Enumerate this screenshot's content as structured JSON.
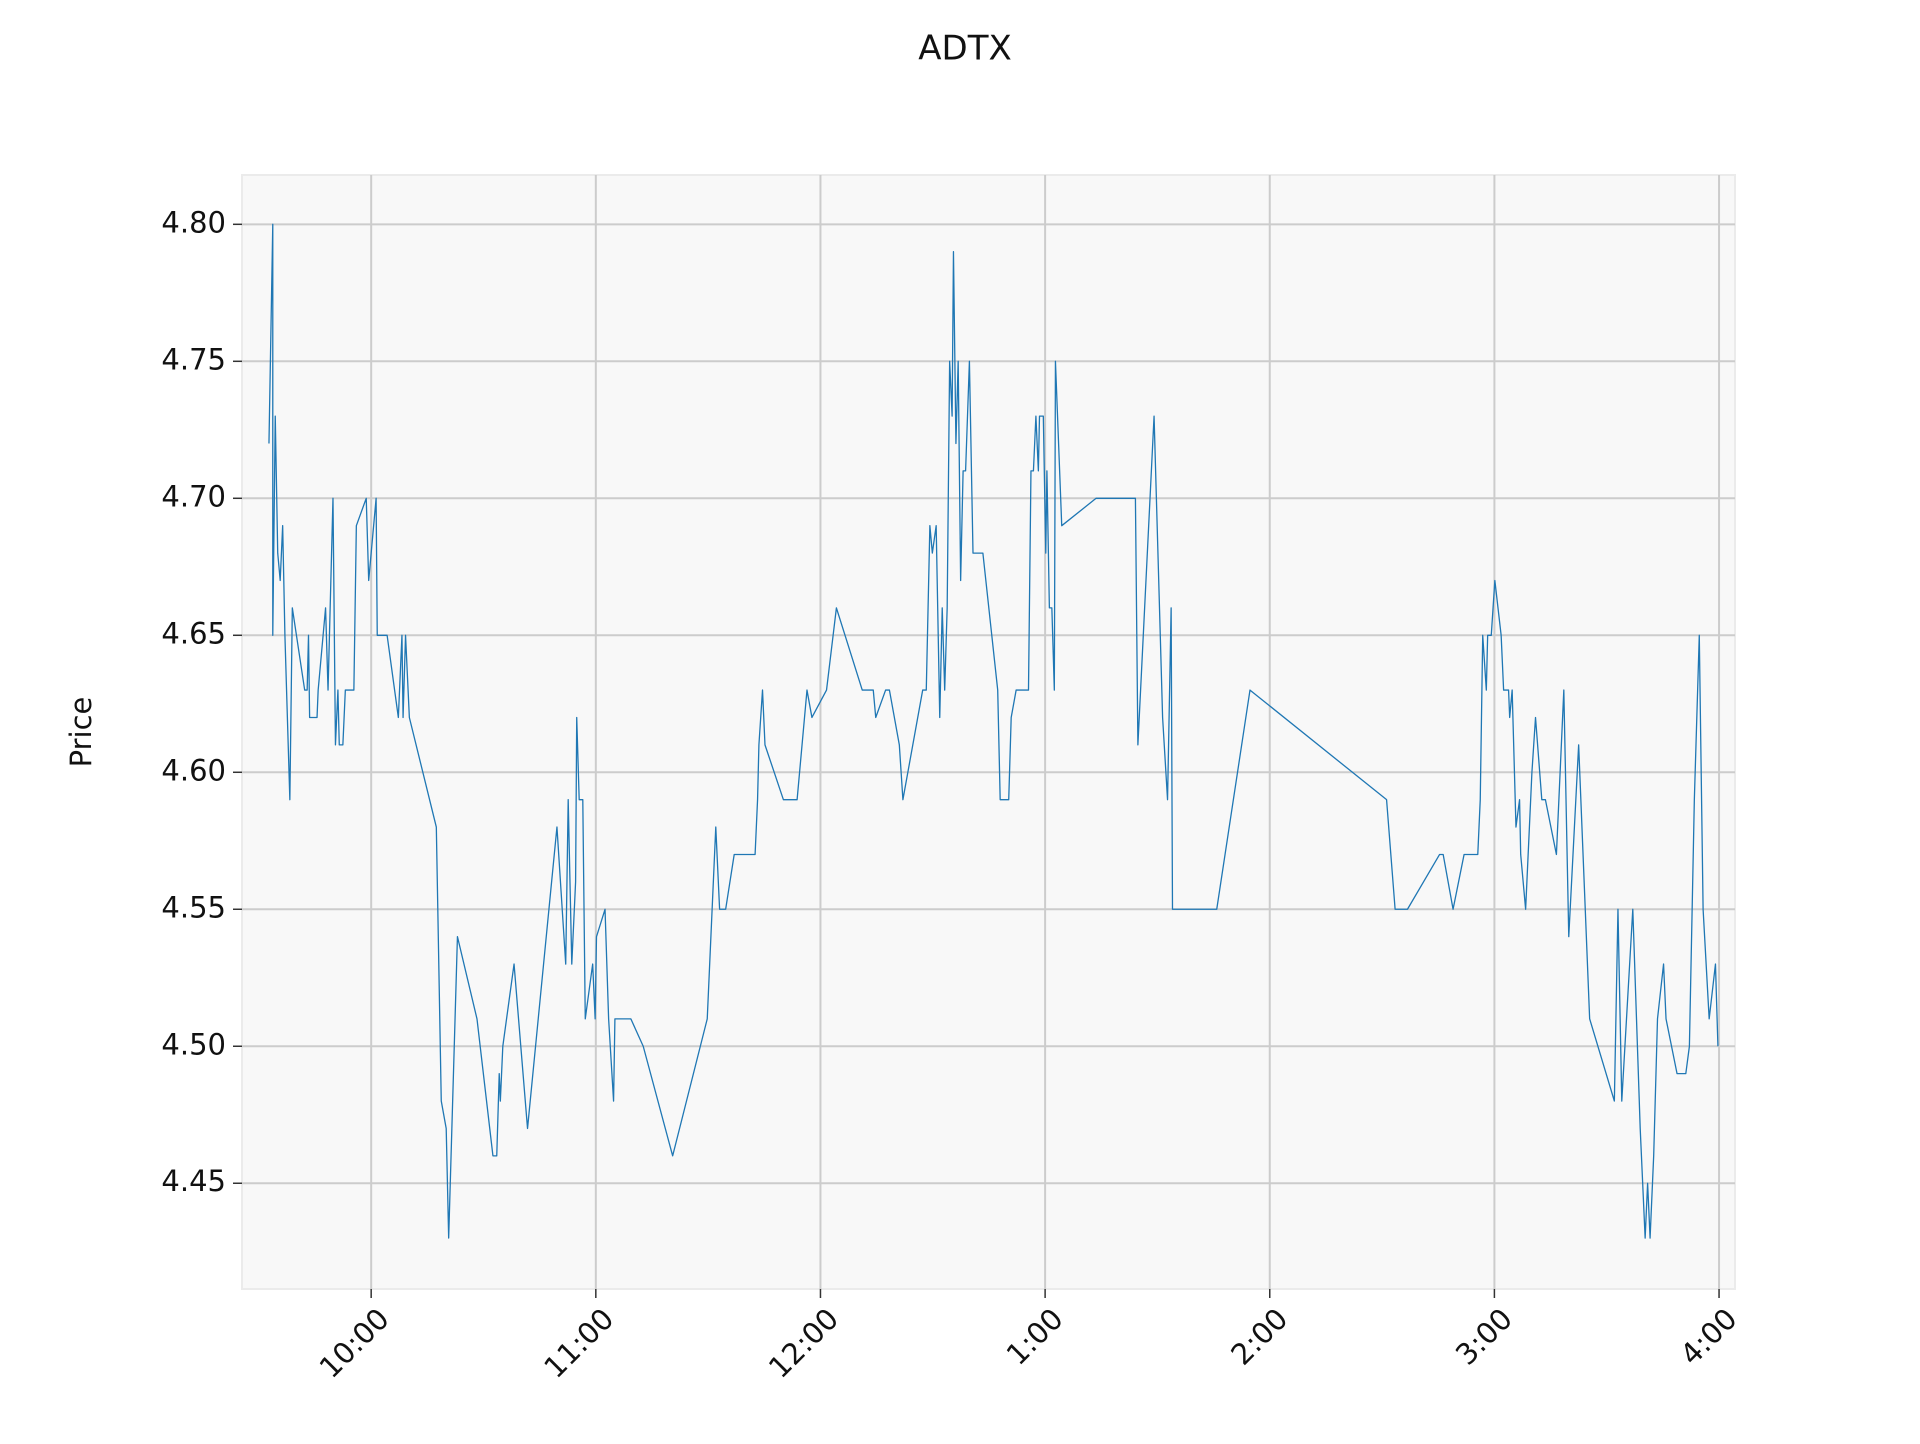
{
  "chart_data": {
    "type": "line",
    "title": "ADTX",
    "y_label": "Price",
    "color": "#1f77b4",
    "grid": true,
    "xlim": [
      9.425,
      16.071
    ],
    "ylim": [
      4.4114,
      4.818
    ],
    "xticks": [
      {
        "value": 10,
        "label": "10:00"
      },
      {
        "value": 11,
        "label": "11:00"
      },
      {
        "value": 12,
        "label": "12:00"
      },
      {
        "value": 13,
        "label": "1:00"
      },
      {
        "value": 14,
        "label": "2:00"
      },
      {
        "value": 15,
        "label": "3:00"
      },
      {
        "value": 16,
        "label": "4:00"
      }
    ],
    "yticks": [
      4.45,
      {
        "value": 4.5,
        "label": "4.50"
      },
      4.55,
      {
        "value": 4.6,
        "label": "4.60"
      },
      4.65,
      {
        "value": 4.7,
        "label": "4.70"
      },
      4.75,
      {
        "value": 4.8,
        "label": "4.80"
      }
    ],
    "x": [
      9.545,
      9.562,
      9.562,
      9.573,
      9.584,
      9.595,
      9.606,
      9.616,
      9.638,
      9.649,
      9.704,
      9.715,
      9.721,
      9.726,
      9.759,
      9.764,
      9.797,
      9.808,
      9.83,
      9.841,
      9.852,
      9.858,
      9.874,
      9.885,
      9.923,
      9.934,
      9.978,
      9.989,
      10.022,
      10.027,
      10.071,
      10.121,
      10.137,
      10.142,
      10.153,
      10.17,
      10.29,
      10.312,
      10.334,
      10.345,
      10.384,
      10.471,
      10.542,
      10.559,
      10.57,
      10.575,
      10.586,
      10.636,
      10.696,
      10.827,
      10.866,
      10.877,
      10.893,
      10.91,
      10.915,
      10.926,
      10.942,
      10.953,
      10.986,
      10.997,
      11.003,
      11.041,
      11.057,
      11.079,
      11.085,
      11.156,
      11.211,
      11.342,
      11.496,
      11.534,
      11.551,
      11.578,
      11.616,
      11.709,
      11.72,
      11.726,
      11.742,
      11.753,
      11.835,
      11.896,
      11.94,
      11.962,
      12.027,
      12.071,
      12.186,
      12.235,
      12.246,
      12.29,
      12.307,
      12.351,
      12.367,
      12.455,
      12.471,
      12.487,
      12.498,
      12.515,
      12.531,
      12.542,
      12.553,
      12.564,
      12.575,
      12.586,
      12.592,
      12.603,
      12.613,
      12.624,
      12.635,
      12.646,
      12.663,
      12.679,
      12.723,
      12.789,
      12.8,
      12.838,
      12.849,
      12.871,
      12.926,
      12.937,
      12.948,
      12.959,
      12.97,
      12.975,
      12.992,
      13.003,
      13.008,
      13.019,
      13.03,
      13.041,
      13.046,
      13.074,
      13.227,
      13.402,
      13.413,
      13.485,
      13.523,
      13.545,
      13.561,
      13.567,
      13.764,
      13.912,
      14.52,
      14.558,
      14.613,
      14.756,
      14.772,
      14.816,
      14.865,
      14.926,
      14.937,
      14.948,
      14.964,
      14.97,
      14.986,
      15.002,
      15.03,
      15.041,
      15.063,
      15.068,
      15.079,
      15.096,
      15.112,
      15.117,
      15.139,
      15.167,
      15.183,
      15.211,
      15.227,
      15.276,
      15.309,
      15.331,
      15.375,
      15.424,
      15.534,
      15.55,
      15.567,
      15.616,
      15.649,
      15.671,
      15.682,
      15.693,
      15.709,
      15.726,
      15.753,
      15.764,
      15.813,
      15.852,
      15.868,
      15.89,
      15.912,
      15.929,
      15.956,
      15.984,
      15.995
    ],
    "values": [
      4.72,
      4.8,
      4.65,
      4.73,
      4.68,
      4.67,
      4.69,
      4.65,
      4.59,
      4.66,
      4.63,
      4.63,
      4.65,
      4.62,
      4.62,
      4.63,
      4.66,
      4.63,
      4.7,
      4.61,
      4.63,
      4.61,
      4.61,
      4.63,
      4.63,
      4.69,
      4.7,
      4.67,
      4.7,
      4.65,
      4.65,
      4.62,
      4.65,
      4.62,
      4.65,
      4.62,
      4.58,
      4.48,
      4.47,
      4.43,
      4.54,
      4.51,
      4.46,
      4.46,
      4.49,
      4.48,
      4.5,
      4.53,
      4.47,
      4.58,
      4.53,
      4.59,
      4.53,
      4.56,
      4.62,
      4.59,
      4.59,
      4.51,
      4.53,
      4.51,
      4.54,
      4.55,
      4.51,
      4.48,
      4.51,
      4.51,
      4.5,
      4.46,
      4.51,
      4.58,
      4.55,
      4.55,
      4.57,
      4.57,
      4.59,
      4.61,
      4.63,
      4.61,
      4.59,
      4.59,
      4.63,
      4.62,
      4.63,
      4.66,
      4.63,
      4.63,
      4.62,
      4.63,
      4.63,
      4.61,
      4.59,
      4.63,
      4.63,
      4.69,
      4.68,
      4.69,
      4.62,
      4.66,
      4.63,
      4.66,
      4.75,
      4.73,
      4.79,
      4.72,
      4.75,
      4.67,
      4.71,
      4.71,
      4.75,
      4.68,
      4.68,
      4.63,
      4.59,
      4.59,
      4.62,
      4.63,
      4.63,
      4.71,
      4.71,
      4.73,
      4.71,
      4.73,
      4.73,
      4.68,
      4.71,
      4.66,
      4.66,
      4.63,
      4.75,
      4.69,
      4.7,
      4.7,
      4.61,
      4.73,
      4.62,
      4.59,
      4.66,
      4.55,
      4.55,
      4.63,
      4.59,
      4.55,
      4.55,
      4.57,
      4.57,
      4.55,
      4.57,
      4.57,
      4.59,
      4.65,
      4.63,
      4.65,
      4.65,
      4.67,
      4.65,
      4.63,
      4.63,
      4.62,
      4.63,
      4.58,
      4.59,
      4.57,
      4.55,
      4.6,
      4.62,
      4.59,
      4.59,
      4.57,
      4.63,
      4.54,
      4.61,
      4.51,
      4.48,
      4.55,
      4.48,
      4.55,
      4.47,
      4.43,
      4.45,
      4.43,
      4.46,
      4.51,
      4.53,
      4.51,
      4.49,
      4.49,
      4.5,
      4.59,
      4.65,
      4.55,
      4.51,
      4.53,
      4.5
    ]
  }
}
